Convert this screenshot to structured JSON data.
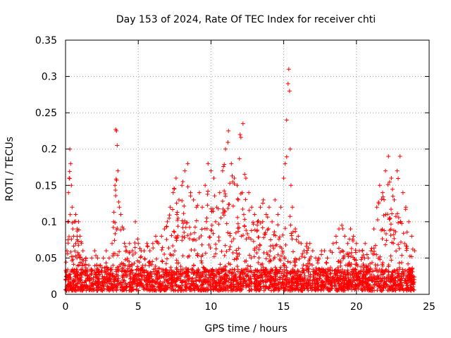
{
  "chart_data": {
    "type": "scatter",
    "title": "Day 153 of 2024, Rate Of TEC Index for receiver chti",
    "xlabel": "GPS time / hours",
    "ylabel": "ROTI / TECUs",
    "xlim": [
      0,
      25
    ],
    "ylim": [
      0,
      0.35
    ],
    "xticks": [
      0,
      5,
      10,
      15,
      20,
      25
    ],
    "xtick_labels": [
      "0",
      "5",
      "10",
      "15",
      "20",
      "25"
    ],
    "yticks": [
      0,
      0.05,
      0.1,
      0.15,
      0.2,
      0.25,
      0.3,
      0.35
    ],
    "ytick_labels": [
      "0",
      "0.05",
      "0.1",
      "0.15",
      "0.2",
      "0.25",
      "0.3",
      "0.35"
    ],
    "grid": true,
    "marker": "+",
    "color": "#ff0000",
    "series": [
      {
        "name": "ROTI",
        "x": [
          0.05,
          0.1,
          0.15,
          0.2,
          0.25,
          0.3,
          0.35,
          0.4,
          0.45,
          0.5,
          0.55,
          0.6,
          0.7,
          0.8,
          0.9,
          1.0,
          1.1,
          1.2,
          1.4,
          1.6,
          1.8,
          2.0,
          2.2,
          2.4,
          2.6,
          2.8,
          3.0,
          3.2,
          3.3,
          3.4,
          3.45,
          3.5,
          3.55,
          3.6,
          3.7,
          3.8,
          4.0,
          4.2,
          4.4,
          4.6,
          4.8,
          5.0,
          5.2,
          5.4,
          5.6,
          5.8,
          6.0,
          6.2,
          6.4,
          6.6,
          6.8,
          7.0,
          7.2,
          7.4,
          7.6,
          7.8,
          8.0,
          8.2,
          8.4,
          8.6,
          8.8,
          9.0,
          9.2,
          9.4,
          9.6,
          9.8,
          10.0,
          10.2,
          10.4,
          10.6,
          10.8,
          11.0,
          11.2,
          11.4,
          11.6,
          11.8,
          12.0,
          12.2,
          12.4,
          12.6,
          12.8,
          13.0,
          13.2,
          13.4,
          13.6,
          13.8,
          14.0,
          14.2,
          14.4,
          14.6,
          14.8,
          15.0,
          15.1,
          15.2,
          15.3,
          15.35,
          15.4,
          15.45,
          15.5,
          15.6,
          15.8,
          16.0,
          16.2,
          16.4,
          16.6,
          16.8,
          17.0,
          17.2,
          17.4,
          17.6,
          17.8,
          18.0,
          18.2,
          18.4,
          18.6,
          18.8,
          19.0,
          19.2,
          19.4,
          19.6,
          19.8,
          20.0,
          20.2,
          20.4,
          20.6,
          20.8,
          21.0,
          21.2,
          21.4,
          21.6,
          21.8,
          22.0,
          22.2,
          22.4,
          22.6,
          22.8,
          23.0,
          23.2,
          23.4,
          23.6,
          23.8,
          24.0
        ],
        "y": [
          0.03,
          0.06,
          0.1,
          0.14,
          0.16,
          0.2,
          0.18,
          0.15,
          0.12,
          0.09,
          0.08,
          0.1,
          0.11,
          0.09,
          0.1,
          0.08,
          0.07,
          0.06,
          0.05,
          0.04,
          0.05,
          0.06,
          0.05,
          0.04,
          0.05,
          0.06,
          0.05,
          0.07,
          0.1,
          0.15,
          0.227,
          0.225,
          0.205,
          0.17,
          0.12,
          0.11,
          0.09,
          0.06,
          0.07,
          0.06,
          0.1,
          0.07,
          0.06,
          0.06,
          0.07,
          0.06,
          0.07,
          0.08,
          0.07,
          0.08,
          0.09,
          0.1,
          0.12,
          0.14,
          0.16,
          0.13,
          0.15,
          0.17,
          0.18,
          0.14,
          0.13,
          0.12,
          0.14,
          0.12,
          0.15,
          0.18,
          0.17,
          0.16,
          0.12,
          0.14,
          0.17,
          0.2,
          0.225,
          0.18,
          0.16,
          0.15,
          0.22,
          0.235,
          0.16,
          0.14,
          0.12,
          0.11,
          0.1,
          0.12,
          0.13,
          0.11,
          0.12,
          0.1,
          0.13,
          0.11,
          0.12,
          0.16,
          0.18,
          0.24,
          0.29,
          0.31,
          0.28,
          0.2,
          0.15,
          0.12,
          0.09,
          0.08,
          0.07,
          0.06,
          0.07,
          0.07,
          0.06,
          0.05,
          0.05,
          0.06,
          0.06,
          0.05,
          0.06,
          0.07,
          0.08,
          0.09,
          0.095,
          0.08,
          0.07,
          0.09,
          0.08,
          0.07,
          0.06,
          0.06,
          0.07,
          0.05,
          0.06,
          0.09,
          0.12,
          0.15,
          0.14,
          0.17,
          0.19,
          0.16,
          0.13,
          0.17,
          0.19,
          0.14,
          0.12,
          0.1,
          0.08,
          0.06
        ]
      }
    ],
    "noise_floor": [
      0.005,
      0.035
    ]
  }
}
